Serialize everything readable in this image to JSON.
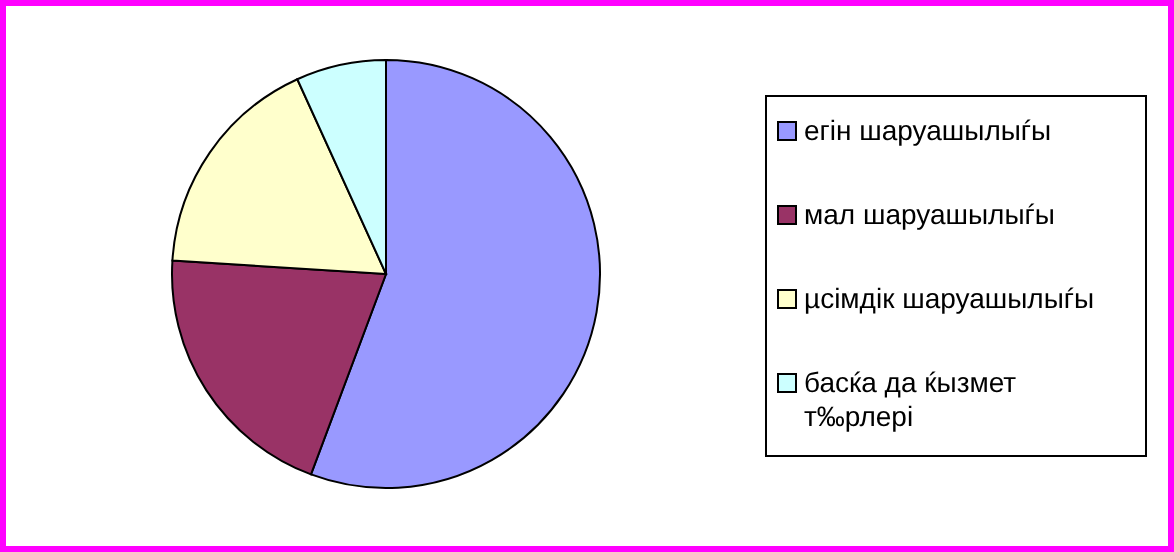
{
  "chart_data": {
    "type": "pie",
    "categories": [
      "егін шаруашылыѓы",
      "мал шаруашылыѓы",
      "µсімдік шаруашылыѓы",
      "басќа да ќызмет т‰рлері"
    ],
    "values": [
      55.7,
      20.3,
      17.2,
      6.8
    ],
    "colors": [
      "#9999ff",
      "#993366",
      "#ffffcc",
      "#ccffff"
    ],
    "legend": "right"
  }
}
